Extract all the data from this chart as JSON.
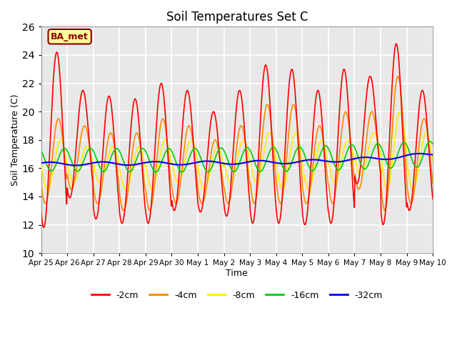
{
  "title": "Soil Temperatures Set C",
  "xlabel": "Time",
  "ylabel": "Soil Temperature (C)",
  "ylim": [
    10,
    26
  ],
  "background_color": "#e8e8e8",
  "annotation_text": "BA_met",
  "annotation_color": "#8B0000",
  "annotation_bg": "#ffff99",
  "annotation_border": "#8B0000",
  "series": {
    "-2cm": {
      "color": "#ff0000",
      "lw": 1.2
    },
    "-4cm": {
      "color": "#ff8800",
      "lw": 1.2
    },
    "-8cm": {
      "color": "#ffee00",
      "lw": 1.2
    },
    "-16cm": {
      "color": "#00cc00",
      "lw": 1.2
    },
    "-32cm": {
      "color": "#0000ee",
      "lw": 1.5
    }
  },
  "xtick_labels": [
    "Apr 25",
    "Apr 26",
    "Apr 27",
    "Apr 28",
    "Apr 29",
    "Apr 30",
    "May 1",
    "May 2",
    "May 3",
    "May 4",
    "May 5",
    "May 6",
    "May 7",
    "May 8",
    "May 9",
    "May 10"
  ],
  "legend_labels": [
    "-2cm",
    "-4cm",
    "-8cm",
    "-16cm",
    "-32cm"
  ],
  "legend_colors": [
    "#ff0000",
    "#ff8800",
    "#ffee00",
    "#00cc00",
    "#0000ee"
  ]
}
